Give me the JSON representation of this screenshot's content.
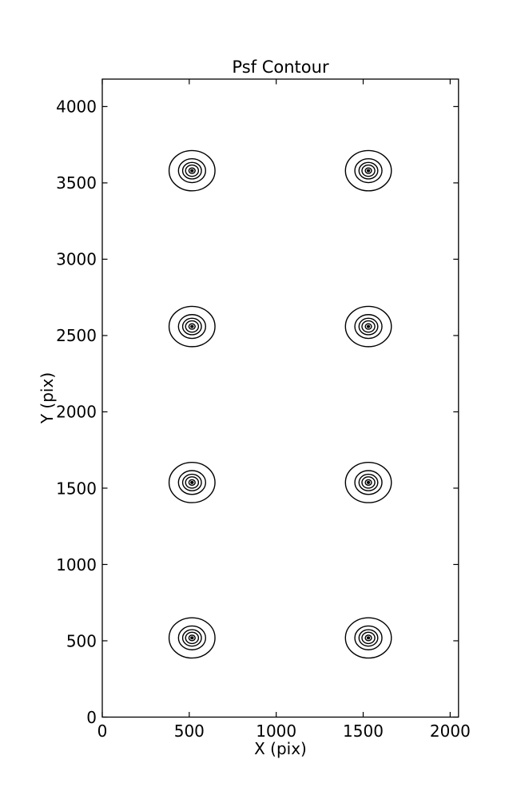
{
  "chart_data": {
    "type": "contour",
    "title": "Psf Contour",
    "xlabel": "X (pix)",
    "ylabel": "Y (pix)",
    "xlim": [
      0,
      2048
    ],
    "ylim": [
      0,
      4180
    ],
    "x_ticks": [
      0,
      500,
      1000,
      1500,
      2000
    ],
    "y_ticks": [
      0,
      500,
      1000,
      1500,
      2000,
      2500,
      3000,
      3500,
      4000
    ],
    "grid": false,
    "legend": null,
    "colors": {
      "line": "#000000",
      "background": "#ffffff",
      "text": "#000000"
    },
    "psf_centers": [
      {
        "x": 516,
        "y": 3580
      },
      {
        "x": 1530,
        "y": 3580
      },
      {
        "x": 516,
        "y": 2559
      },
      {
        "x": 1530,
        "y": 2559
      },
      {
        "x": 516,
        "y": 1537
      },
      {
        "x": 1530,
        "y": 1537
      },
      {
        "x": 516,
        "y": 519
      },
      {
        "x": 1530,
        "y": 519
      }
    ],
    "contour_ring_radii_pix": [
      132,
      78,
      54,
      37,
      18
    ],
    "peak_dot_radius_pix": 8
  }
}
